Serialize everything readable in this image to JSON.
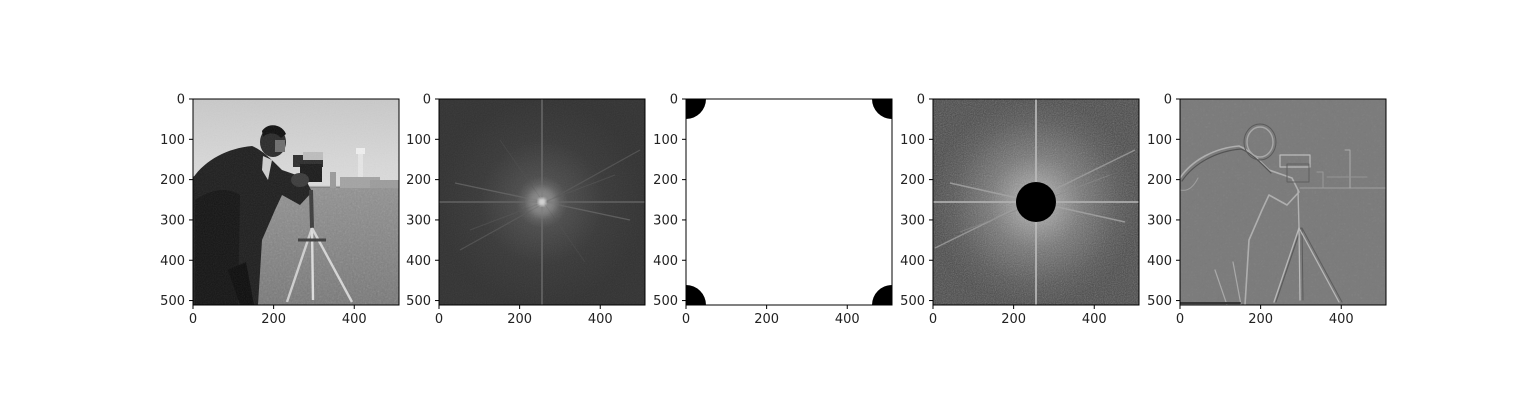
{
  "figure": {
    "background": "#ffffff",
    "axis_color": "#000000",
    "text_color": "#222222"
  },
  "chart_data": [
    {
      "type": "heatmap",
      "content": "grayscale photograph of a man with a camera on a tripod (cameraman)",
      "xlim": [
        0,
        511
      ],
      "ylim": [
        511,
        0
      ],
      "xticks": [
        0,
        200,
        400
      ],
      "yticks": [
        0,
        100,
        200,
        300,
        400,
        500
      ],
      "colormap": "gray"
    },
    {
      "type": "heatmap",
      "content": "log magnitude of the centered 2D Fourier spectrum; bright center with radial streaks",
      "xlim": [
        0,
        511
      ],
      "ylim": [
        511,
        0
      ],
      "xticks": [
        0,
        200,
        400
      ],
      "yticks": [
        0,
        100,
        200,
        300,
        400,
        500
      ],
      "colormap": "gray"
    },
    {
      "type": "heatmap",
      "content": "high-pass mask: white everywhere with black quarter-discs of radius ~50 at the four corners",
      "mask_radius": 50,
      "xlim": [
        0,
        511
      ],
      "ylim": [
        511,
        0
      ],
      "xticks": [
        0,
        200,
        400
      ],
      "yticks": [
        0,
        100,
        200,
        300,
        400,
        500
      ],
      "colormap": "gray"
    },
    {
      "type": "heatmap",
      "content": "masked spectrum: centered log spectrum with a black disc of radius ~50 at (256, 256)",
      "mask_radius": 50,
      "xlim": [
        0,
        511
      ],
      "ylim": [
        511,
        0
      ],
      "xticks": [
        0,
        200,
        400
      ],
      "yticks": [
        0,
        100,
        200,
        300,
        400,
        500
      ],
      "colormap": "gray"
    },
    {
      "type": "heatmap",
      "content": "high-pass filtered image: gray background with edges of the cameraman outlined",
      "xlim": [
        0,
        511
      ],
      "ylim": [
        511,
        0
      ],
      "xticks": [
        0,
        200,
        400
      ],
      "yticks": [
        0,
        100,
        200,
        300,
        400,
        500
      ],
      "colormap": "gray"
    }
  ]
}
